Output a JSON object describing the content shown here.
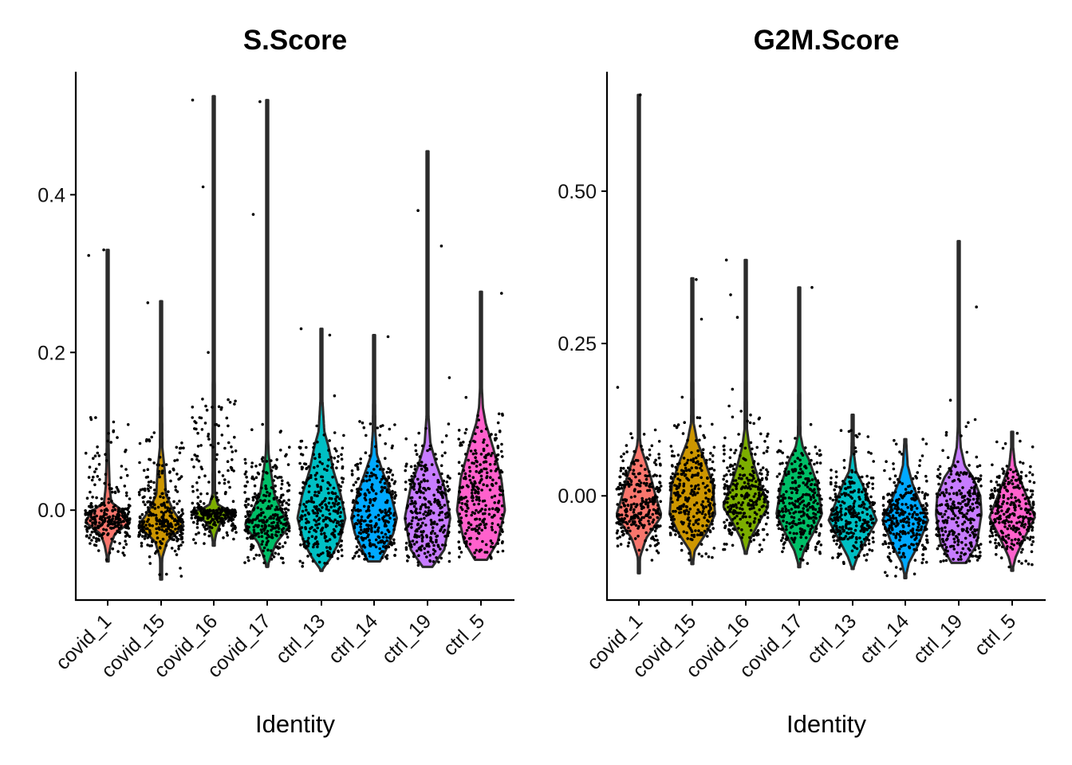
{
  "chart_data": [
    {
      "type": "violin",
      "title": "S.Score",
      "xlabel": "Identity",
      "ylabel": "",
      "ylim": [
        -0.114,
        0.556
      ],
      "yticks": [
        0.0,
        0.2,
        0.4
      ],
      "ytick_labels": [
        "0.0",
        "0.2",
        "0.4"
      ],
      "categories": [
        "covid_1",
        "covid_15",
        "covid_16",
        "covid_17",
        "ctrl_13",
        "ctrl_14",
        "ctrl_19",
        "ctrl_5"
      ],
      "colors": [
        "#F8766D",
        "#CD9600",
        "#7CAE00",
        "#00BE67",
        "#00BFC4",
        "#00A9FF",
        "#C77CFF",
        "#FF61CC"
      ],
      "grid": false,
      "legend": "none",
      "groups": [
        {
          "min": -0.065,
          "max": 0.33,
          "density": [
            [
              -0.065,
              0
            ],
            [
              -0.045,
              0.12
            ],
            [
              -0.03,
              0.3
            ],
            [
              -0.015,
              0.95
            ],
            [
              0.0,
              0.6
            ],
            [
              0.01,
              0.15
            ],
            [
              0.03,
              0.08
            ],
            [
              0.06,
              0.05
            ],
            [
              0.1,
              0.03
            ],
            [
              0.33,
              0.02
            ]
          ],
          "outliers": [
            0.323,
            0.33
          ]
        },
        {
          "min": -0.088,
          "max": 0.265,
          "density": [
            [
              -0.088,
              0
            ],
            [
              -0.06,
              0.05
            ],
            [
              -0.04,
              0.25
            ],
            [
              -0.02,
              0.95
            ],
            [
              0.0,
              0.5
            ],
            [
              0.02,
              0.2
            ],
            [
              0.05,
              0.15
            ],
            [
              0.08,
              0.05
            ],
            [
              0.265,
              0.02
            ]
          ],
          "outliers": [
            0.263
          ]
        },
        {
          "min": -0.045,
          "max": 0.525,
          "density": [
            [
              -0.045,
              0
            ],
            [
              -0.03,
              0.1
            ],
            [
              -0.015,
              0.3
            ],
            [
              -0.003,
              0.95
            ],
            [
              0.005,
              0.2
            ],
            [
              0.02,
              0.05
            ],
            [
              0.525,
              0.02
            ]
          ],
          "outliers": [
            0.52,
            0.41,
            0.2
          ]
        },
        {
          "min": -0.072,
          "max": 0.52,
          "density": [
            [
              -0.072,
              0
            ],
            [
              -0.055,
              0.2
            ],
            [
              -0.04,
              0.4
            ],
            [
              -0.02,
              0.95
            ],
            [
              0.0,
              0.6
            ],
            [
              0.02,
              0.3
            ],
            [
              0.05,
              0.15
            ],
            [
              0.07,
              0.06
            ],
            [
              0.1,
              0.03
            ],
            [
              0.52,
              0.02
            ]
          ],
          "outliers": [
            0.375,
            0.518
          ]
        },
        {
          "min": -0.077,
          "max": 0.23,
          "density": [
            [
              -0.077,
              0
            ],
            [
              -0.06,
              0.4
            ],
            [
              -0.04,
              0.75
            ],
            [
              -0.01,
              1.0
            ],
            [
              0.02,
              0.8
            ],
            [
              0.05,
              0.5
            ],
            [
              0.08,
              0.3
            ],
            [
              0.1,
              0.12
            ],
            [
              0.14,
              0.04
            ],
            [
              0.23,
              0.02
            ]
          ],
          "outliers": [
            0.23,
            0.222,
            0.145
          ]
        },
        {
          "min": -0.065,
          "max": 0.222,
          "density": [
            [
              -0.065,
              0.25
            ],
            [
              -0.05,
              0.5
            ],
            [
              -0.03,
              0.8
            ],
            [
              -0.01,
              0.95
            ],
            [
              0.02,
              0.7
            ],
            [
              0.05,
              0.35
            ],
            [
              0.07,
              0.12
            ],
            [
              0.1,
              0.05
            ],
            [
              0.222,
              0.02
            ]
          ],
          "outliers": [
            0.22
          ]
        },
        {
          "min": -0.072,
          "max": 0.455,
          "density": [
            [
              -0.072,
              0.2
            ],
            [
              -0.05,
              0.7
            ],
            [
              -0.01,
              0.95
            ],
            [
              0.03,
              0.7
            ],
            [
              0.06,
              0.35
            ],
            [
              0.085,
              0.12
            ],
            [
              0.12,
              0.04
            ],
            [
              0.455,
              0.02
            ]
          ],
          "outliers": [
            0.38,
            0.335,
            0.168
          ]
        },
        {
          "min": -0.063,
          "max": 0.277,
          "density": [
            [
              -0.063,
              0.25
            ],
            [
              -0.04,
              0.7
            ],
            [
              0.0,
              1.0
            ],
            [
              0.04,
              0.85
            ],
            [
              0.08,
              0.5
            ],
            [
              0.11,
              0.2
            ],
            [
              0.13,
              0.08
            ],
            [
              0.16,
              0.03
            ],
            [
              0.277,
              0.02
            ]
          ],
          "outliers": [
            0.275,
            0.143
          ]
        }
      ]
    },
    {
      "type": "violin",
      "title": "G2M.Score",
      "xlabel": "Identity",
      "ylabel": "",
      "ylim": [
        -0.171,
        0.696
      ],
      "yticks": [
        0.0,
        0.25,
        0.5
      ],
      "ytick_labels": [
        "0.00",
        "0.25",
        "0.50"
      ],
      "categories": [
        "covid_1",
        "covid_15",
        "covid_16",
        "covid_17",
        "ctrl_13",
        "ctrl_14",
        "ctrl_19",
        "ctrl_5"
      ],
      "colors": [
        "#F8766D",
        "#CD9600",
        "#7CAE00",
        "#00BE67",
        "#00BFC4",
        "#00A9FF",
        "#C77CFF",
        "#FF61CC"
      ],
      "grid": false,
      "legend": "none",
      "groups": [
        {
          "min": -0.127,
          "max": 0.658,
          "density": [
            [
              -0.127,
              0
            ],
            [
              -0.1,
              0.05
            ],
            [
              -0.07,
              0.3
            ],
            [
              -0.033,
              0.95
            ],
            [
              0.0,
              0.7
            ],
            [
              0.03,
              0.5
            ],
            [
              0.06,
              0.25
            ],
            [
              0.08,
              0.08
            ],
            [
              0.1,
              0.03
            ],
            [
              0.658,
              0.02
            ]
          ],
          "outliers": [
            0.658,
            0.178
          ]
        },
        {
          "min": -0.112,
          "max": 0.357,
          "density": [
            [
              -0.112,
              0.02
            ],
            [
              -0.09,
              0.1
            ],
            [
              -0.06,
              0.6
            ],
            [
              -0.03,
              0.95
            ],
            [
              0.02,
              0.85
            ],
            [
              0.06,
              0.5
            ],
            [
              0.09,
              0.2
            ],
            [
              0.12,
              0.05
            ],
            [
              0.357,
              0.02
            ]
          ],
          "outliers": [
            0.355,
            0.29,
            0.162
          ]
        },
        {
          "min": -0.095,
          "max": 0.387,
          "density": [
            [
              -0.095,
              0.02
            ],
            [
              -0.07,
              0.2
            ],
            [
              -0.04,
              0.6
            ],
            [
              -0.017,
              0.95
            ],
            [
              0.02,
              0.6
            ],
            [
              0.05,
              0.35
            ],
            [
              0.08,
              0.15
            ],
            [
              0.11,
              0.05
            ],
            [
              0.387,
              0.02
            ]
          ],
          "outliers": [
            0.387,
            0.33,
            0.293,
            0.175
          ]
        },
        {
          "min": -0.117,
          "max": 0.342,
          "density": [
            [
              -0.117,
              0
            ],
            [
              -0.09,
              0.2
            ],
            [
              -0.06,
              0.6
            ],
            [
              -0.03,
              0.95
            ],
            [
              0.02,
              0.75
            ],
            [
              0.06,
              0.4
            ],
            [
              0.08,
              0.15
            ],
            [
              0.1,
              0.05
            ],
            [
              0.342,
              0.02
            ]
          ],
          "outliers": [
            0.342
          ]
        },
        {
          "min": -0.12,
          "max": 0.133,
          "density": [
            [
              -0.12,
              0.02
            ],
            [
              -0.1,
              0.2
            ],
            [
              -0.07,
              0.6
            ],
            [
              -0.04,
              1.0
            ],
            [
              -0.01,
              0.7
            ],
            [
              0.02,
              0.4
            ],
            [
              0.04,
              0.15
            ],
            [
              0.07,
              0.05
            ],
            [
              0.133,
              0.02
            ]
          ],
          "outliers": []
        },
        {
          "min": -0.135,
          "max": 0.093,
          "density": [
            [
              -0.135,
              0
            ],
            [
              -0.11,
              0.15
            ],
            [
              -0.08,
              0.55
            ],
            [
              -0.04,
              0.95
            ],
            [
              -0.01,
              0.6
            ],
            [
              0.02,
              0.3
            ],
            [
              0.05,
              0.1
            ],
            [
              0.093,
              0.03
            ]
          ],
          "outliers": []
        },
        {
          "min": -0.11,
          "max": 0.418,
          "density": [
            [
              -0.11,
              0.3
            ],
            [
              -0.08,
              0.75
            ],
            [
              -0.03,
              0.95
            ],
            [
              0.0,
              0.9
            ],
            [
              0.03,
              0.6
            ],
            [
              0.05,
              0.25
            ],
            [
              0.08,
              0.08
            ],
            [
              0.12,
              0.03
            ],
            [
              0.418,
              0.02
            ]
          ],
          "outliers": [
            0.31,
            0.157
          ]
        },
        {
          "min": -0.123,
          "max": 0.105,
          "density": [
            [
              -0.123,
              0
            ],
            [
              -0.1,
              0.15
            ],
            [
              -0.07,
              0.5
            ],
            [
              -0.035,
              0.95
            ],
            [
              -0.01,
              0.7
            ],
            [
              0.02,
              0.4
            ],
            [
              0.05,
              0.12
            ],
            [
              0.08,
              0.04
            ],
            [
              0.105,
              0.02
            ]
          ],
          "outliers": []
        }
      ]
    }
  ]
}
